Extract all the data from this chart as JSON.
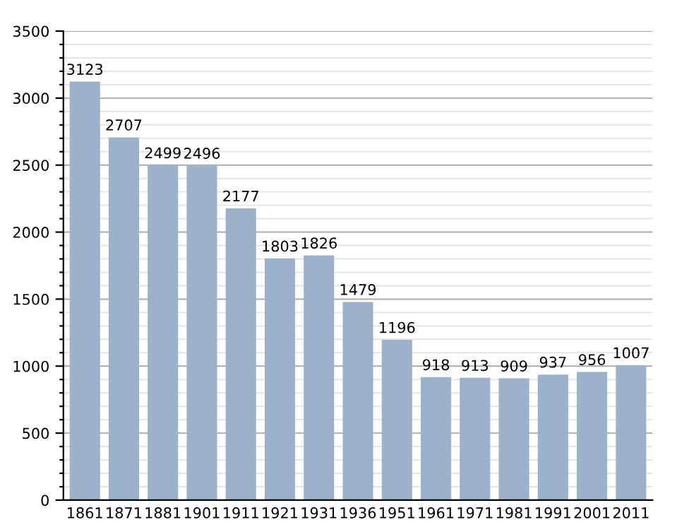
{
  "chart_data": {
    "type": "bar",
    "categories": [
      "1861",
      "1871",
      "1881",
      "1901",
      "1911",
      "1921",
      "1931",
      "1936",
      "1951",
      "1961",
      "1971",
      "1981",
      "1991",
      "2001",
      "2011"
    ],
    "values": [
      3123,
      2707,
      2499,
      2496,
      2177,
      1803,
      1826,
      1479,
      1196,
      918,
      913,
      909,
      937,
      956,
      1007
    ],
    "color": "#9bb1cc",
    "ylim": [
      0,
      3500
    ],
    "yticks": [
      0,
      {
        "value": 100,
        "label": null
      },
      {
        "value": 200,
        "label": null
      },
      {
        "value": 300,
        "label": null
      },
      {
        "value": 400,
        "label": null
      },
      500,
      {
        "value": 600,
        "label": null
      },
      {
        "value": 700,
        "label": null
      },
      {
        "value": 800,
        "label": null
      },
      {
        "value": 900,
        "label": null
      },
      1000,
      {
        "value": 1100,
        "label": null
      },
      {
        "value": 1200,
        "label": null
      },
      {
        "value": 1300,
        "label": null
      },
      {
        "value": 1400,
        "label": null
      },
      1500,
      {
        "value": 1600,
        "label": null
      },
      {
        "value": 1700,
        "label": null
      },
      {
        "value": 1800,
        "label": null
      },
      {
        "value": 1900,
        "label": null
      },
      2000,
      {
        "value": 2100,
        "label": null
      },
      {
        "value": 2200,
        "label": null
      },
      {
        "value": 2300,
        "label": null
      },
      {
        "value": 2400,
        "label": null
      },
      2500,
      {
        "value": 2600,
        "label": null
      },
      {
        "value": 2700,
        "label": null
      },
      {
        "value": 2800,
        "label": null
      },
      {
        "value": 2900,
        "label": null
      },
      3000,
      {
        "value": 3100,
        "label": null
      },
      {
        "value": 3200,
        "label": null
      },
      {
        "value": 3300,
        "label": null
      },
      {
        "value": 3400,
        "label": null
      },
      3500
    ],
    "grid": "y",
    "data_labels": true
  }
}
